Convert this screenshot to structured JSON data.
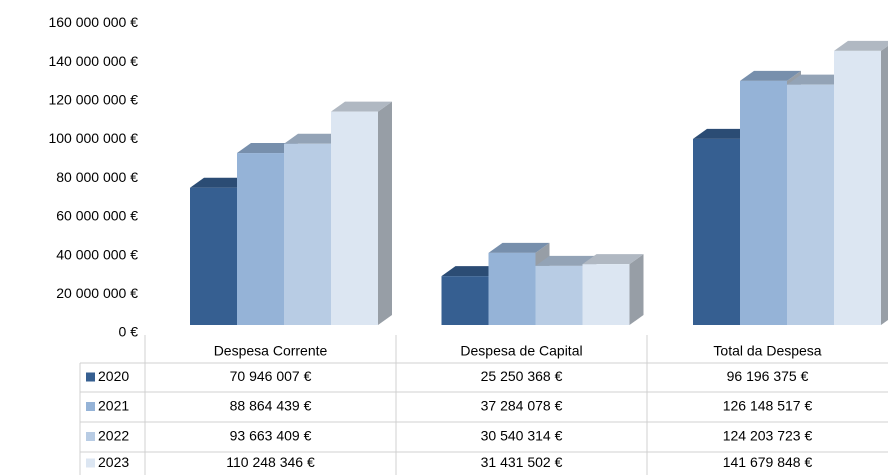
{
  "chart_data": {
    "type": "bar3d",
    "categories": [
      "Despesa Corrente",
      "Despesa de Capital",
      "Total da Despesa"
    ],
    "series": [
      {
        "name": "2020",
        "color": "#365f91",
        "values": [
          70946007,
          25250368,
          96196375
        ],
        "value_labels": [
          "70 946 007 €",
          "25 250 368 €",
          "96 196 375 €"
        ]
      },
      {
        "name": "2021",
        "color": "#95b3d7",
        "values": [
          88864439,
          37284078,
          126148517
        ],
        "value_labels": [
          "88 864 439 €",
          "37 284 078 €",
          "126 148 517 €"
        ]
      },
      {
        "name": "2022",
        "color": "#b8cce4",
        "values": [
          93663409,
          30540314,
          124203723
        ],
        "value_labels": [
          "93 663 409 €",
          "30 540 314 €",
          "124 203 723 €"
        ]
      },
      {
        "name": "2023",
        "color": "#dce6f2",
        "values": [
          110248346,
          31431502,
          141679848
        ],
        "value_labels": [
          "110 248 346 €",
          "31 431 502 €",
          "141 679 848 €"
        ]
      }
    ],
    "ylim": [
      0,
      160000000
    ],
    "yticks": [
      {
        "value": 0,
        "label": "0 €"
      },
      {
        "value": 20000000,
        "label": "20 000 000 €"
      },
      {
        "value": 40000000,
        "label": "40 000 000 €"
      },
      {
        "value": 60000000,
        "label": "60 000 000 €"
      },
      {
        "value": 80000000,
        "label": "80 000 000 €"
      },
      {
        "value": 100000000,
        "label": "100 000 000 €"
      },
      {
        "value": 120000000,
        "label": "120 000 000 €"
      },
      {
        "value": 140000000,
        "label": "140 000 000 €"
      },
      {
        "value": 160000000,
        "label": "160 000 000 €"
      }
    ],
    "data_table": true
  }
}
